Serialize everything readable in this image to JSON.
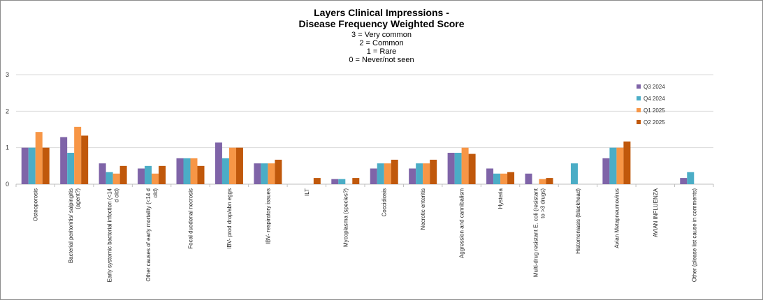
{
  "chart_data": {
    "type": "bar",
    "title_lines": [
      "Layers Clinical Impressions -",
      "Disease Frequency Weighted Score"
    ],
    "subtitle_lines": [
      "3 = Very common",
      "2 = Common",
      "1 = Rare",
      "0 = Never/not seen"
    ],
    "xlabel": "",
    "ylabel": "",
    "ylim": [
      0,
      3
    ],
    "yticks": [
      0,
      1,
      2,
      3
    ],
    "grid": true,
    "legend_position": "right",
    "categories": [
      "Osteoporosis",
      "Bacterial peritonitis/ salpingitis (agent?)",
      "Early systemic bacterial infection (<14 d old)",
      "Other causes of early mortality (<14 d old)",
      "Focal duodenal necrosis",
      "IBV- prod drop/abn eggs",
      "IBV- respiratory issues",
      "ILT",
      "Mycoplasma (species?)",
      "Coccidiosis",
      "Necrotic enteritis",
      "Aggression and cannibalism",
      "Hysteria",
      "Multi-drug resistant E. coli (resistant to >3 drugs)",
      "Histomoniasis (blackhead)",
      "Avian Metapneumovirus",
      "AVIAN INFLUENZA",
      "Other (please list cause in comments)"
    ],
    "category_label_lines": [
      [
        "Osteoporosis"
      ],
      [
        "Bacterial peritonitis/ salpingitis",
        "(agent?)"
      ],
      [
        "Early systemic bacterial infection (<14",
        "d old)"
      ],
      [
        "Other causes of early mortality (<14 d",
        "old)"
      ],
      [
        "Focal duodenal necrosis"
      ],
      [
        "IBV- prod drop/abn eggs"
      ],
      [
        "IBV- respiratory issues"
      ],
      [
        "ILT"
      ],
      [
        "Mycoplasma (species?)"
      ],
      [
        "Coccidiosis"
      ],
      [
        "Necrotic enteritis"
      ],
      [
        "Aggression and cannibalism"
      ],
      [
        "Hysteria"
      ],
      [
        "Multi-drug resistant E. coli (resistant",
        "to >3 drugs)"
      ],
      [
        "Histomoniasis (blackhead)"
      ],
      [
        "Avian Metapneumovirus"
      ],
      [
        "AVIAN INFLUENZA"
      ],
      [
        "Other (please list cause in comments)"
      ]
    ],
    "series": [
      {
        "name": "Q3 2024",
        "color": "#7f64a8",
        "values": [
          1.0,
          1.29,
          0.57,
          0.43,
          0.71,
          1.14,
          0.57,
          0,
          0.14,
          0.43,
          0.43,
          0.86,
          0.43,
          0.29,
          0,
          0.71,
          0,
          0.17
        ]
      },
      {
        "name": "Q4 2024",
        "color": "#4badc6",
        "values": [
          1.0,
          0.86,
          0.33,
          0.5,
          0.71,
          0.71,
          0.57,
          0,
          0.14,
          0.57,
          0.57,
          0.86,
          0.29,
          0,
          0.57,
          1.0,
          0,
          0.33
        ]
      },
      {
        "name": "Q1 2025",
        "color": "#f79646",
        "values": [
          1.43,
          1.57,
          0.29,
          0.29,
          0.71,
          1.0,
          0.57,
          0,
          0,
          0.57,
          0.57,
          1.0,
          0.29,
          0.14,
          0,
          1.0,
          0,
          0
        ]
      },
      {
        "name": "Q2 2025",
        "color": "#c0580b",
        "values": [
          1.0,
          1.33,
          0.5,
          0.5,
          0.5,
          1.0,
          0.67,
          0.17,
          0.17,
          0.67,
          0.67,
          0.83,
          0.33,
          0.17,
          0,
          1.17,
          0,
          0
        ]
      }
    ]
  }
}
